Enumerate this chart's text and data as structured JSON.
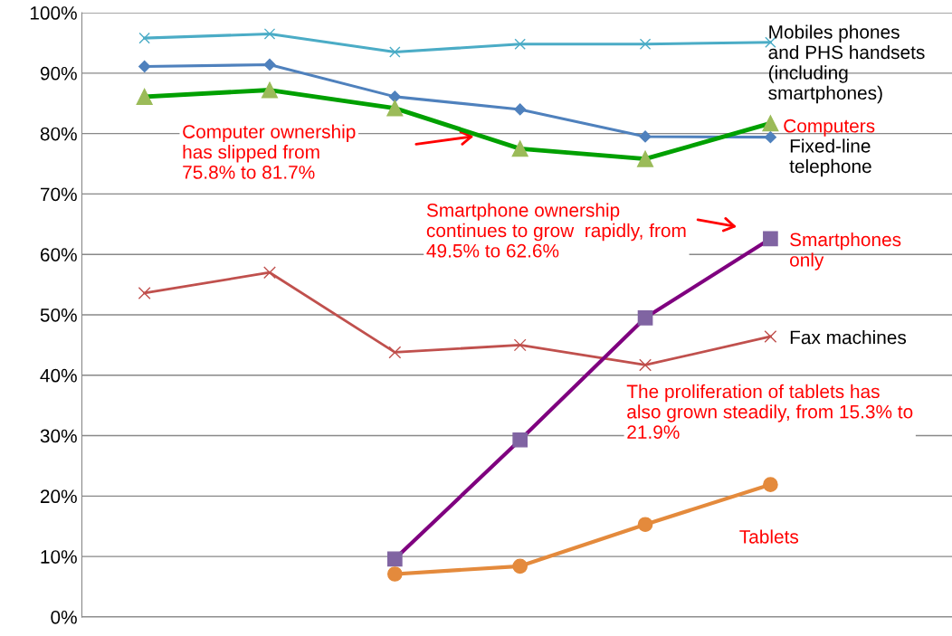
{
  "chart_data": {
    "type": "line",
    "categories": [
      null,
      null,
      null,
      null,
      null,
      null
    ],
    "series": [
      {
        "name": "Mobiles phones and PHS handsets (including smartphones)",
        "color": "#4bacc6",
        "marker": "cross",
        "values": [
          95.8,
          96.5,
          93.5,
          94.8,
          94.8,
          95.1
        ]
      },
      {
        "name": "Fixed-line telephone",
        "color": "#4f81bd",
        "marker": "diamond",
        "values": [
          91.1,
          91.4,
          86.1,
          84.0,
          79.5,
          79.4
        ]
      },
      {
        "name": "Computers",
        "color": "#00a000",
        "marker": "triangle",
        "values": [
          86.1,
          87.2,
          84.2,
          77.5,
          75.8,
          81.7
        ]
      },
      {
        "name": "Fax machines",
        "color": "#c0504d",
        "marker": "cross",
        "values": [
          53.6,
          57.0,
          43.8,
          45.0,
          41.7,
          46.4
        ]
      },
      {
        "name": "Smartphones only",
        "color": "#7f007f",
        "marker": "square",
        "values": [
          null,
          null,
          9.6,
          29.3,
          49.5,
          62.6
        ]
      },
      {
        "name": "Tablets",
        "color": "#e48a3c",
        "marker": "circle",
        "values": [
          null,
          null,
          7.1,
          8.4,
          15.3,
          21.9
        ]
      }
    ],
    "ylim": [
      0,
      100
    ],
    "yticks": [
      {
        "value": 0,
        "label": "0%"
      },
      {
        "value": 10,
        "label": "10%"
      },
      {
        "value": 20,
        "label": "20%"
      },
      {
        "value": 30,
        "label": "30%"
      },
      {
        "value": 40,
        "label": "40%"
      },
      {
        "value": 50,
        "label": "50%"
      },
      {
        "value": 60,
        "label": "60%"
      },
      {
        "value": 70,
        "label": "70%"
      },
      {
        "value": 80,
        "label": "80%"
      },
      {
        "value": 90,
        "label": "90%"
      },
      {
        "value": 100,
        "label": "100%"
      }
    ],
    "grid": "y",
    "legend": false,
    "annotations": [
      "Computer ownership has slipped from 75.8% to 81.7%",
      "Smartphone ownership continues to grow  rapidly, from 49.5% to 62.6%",
      "The proliferation of tablets has also grown steadily, from 15.3% to 21.9%"
    ]
  }
}
